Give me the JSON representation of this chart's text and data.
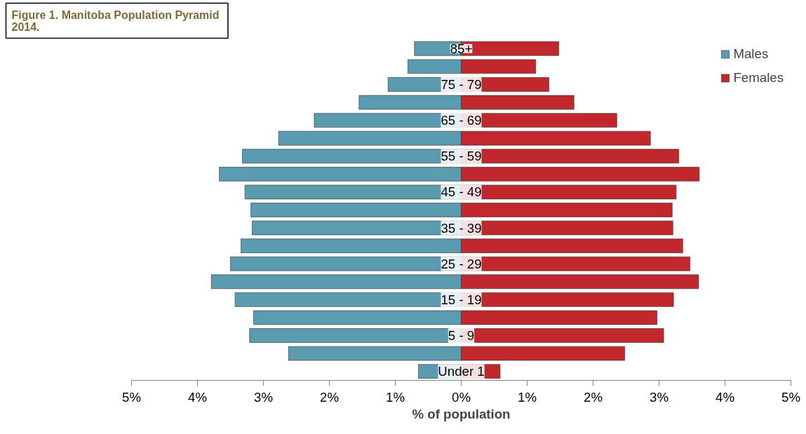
{
  "chart_data": {
    "type": "bar",
    "orientation": "horizontal",
    "title": "Figure 1.  Manitoba Population Pyramid 2014.",
    "xlabel": "% of population",
    "categories": [
      "85+",
      null,
      "75 - 79",
      null,
      "65 - 69",
      null,
      "55 - 59",
      null,
      "45 - 49",
      null,
      "35 - 39",
      null,
      "25 - 29",
      null,
      "15 - 19",
      null,
      "5 - 9",
      null,
      "Under 1"
    ],
    "series": [
      {
        "name": "Males",
        "color": "#5b9bb0",
        "values": [
          -0.71,
          -0.81,
          -1.11,
          -1.55,
          -2.23,
          -2.77,
          -3.32,
          -3.67,
          -3.28,
          -3.19,
          -3.17,
          -3.34,
          -3.5,
          -3.79,
          -3.43,
          -3.15,
          -3.21,
          -2.62,
          -0.65
        ]
      },
      {
        "name": "Females",
        "color": "#c0282d",
        "values": [
          1.48,
          1.13,
          1.33,
          1.71,
          2.36,
          2.87,
          3.3,
          3.61,
          3.26,
          3.2,
          3.21,
          3.36,
          3.47,
          3.6,
          3.22,
          2.97,
          3.07,
          2.48,
          0.59
        ]
      }
    ],
    "xlim": [
      -5,
      5
    ],
    "xticks": [
      {
        "value": -5,
        "label": "5%"
      },
      {
        "value": -4,
        "label": "4%"
      },
      {
        "value": -3,
        "label": "3%"
      },
      {
        "value": -2,
        "label": "2%"
      },
      {
        "value": -1,
        "label": "1%"
      },
      {
        "value": 0,
        "label": "0%"
      },
      {
        "value": 1,
        "label": "1%"
      },
      {
        "value": 2,
        "label": "2%"
      },
      {
        "value": 3,
        "label": "3%"
      },
      {
        "value": 4,
        "label": "4%"
      },
      {
        "value": 5,
        "label": "5%"
      }
    ],
    "grid": false,
    "legend": "top right",
    "stacked": true
  }
}
